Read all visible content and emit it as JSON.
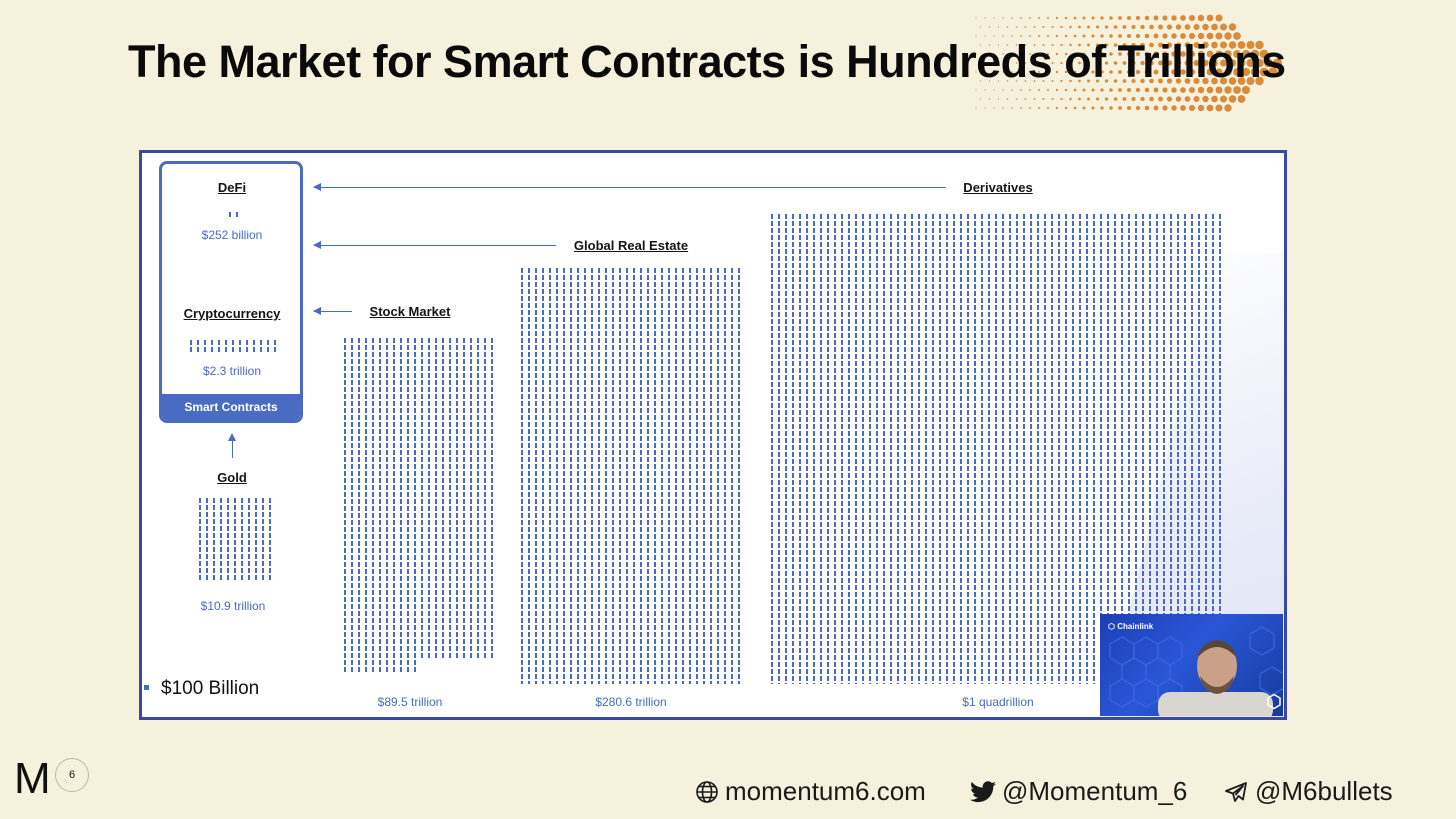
{
  "slide": {
    "title": "The Market for Smart Contracts is Hundreds of Trillions",
    "page_number": "6",
    "logo_text": "M"
  },
  "chart": {
    "smart_contracts_label": "Smart Contracts",
    "defi": {
      "label": "DeFi",
      "value": "$252 billion"
    },
    "crypto": {
      "label": "Cryptocurrency",
      "value": "$2.3 trillion"
    },
    "gold": {
      "label": "Gold",
      "value": "$10.9 trillion"
    },
    "stock": {
      "label": "Stock Market",
      "value": "$89.5 trillion"
    },
    "real_estate": {
      "label": "Global Real Estate",
      "value": "$280.6 trillion"
    },
    "derivatives": {
      "label": "Derivatives",
      "value": "$1 quadrillion"
    },
    "scale": "$100 Billion"
  },
  "chart_data": {
    "type": "other",
    "unit_per_square": "$100 Billion",
    "categories": [
      "DeFi",
      "Cryptocurrency",
      "Gold",
      "Stock Market",
      "Global Real Estate",
      "Derivatives"
    ],
    "value_labels": [
      "$252 billion",
      "$2.3 trillion",
      "$10.9 trillion",
      "$89.5 trillion",
      "$280.6 trillion",
      "$1 quadrillion"
    ],
    "values_usd_billion": [
      252,
      2300,
      10900,
      89500,
      280600,
      1000000
    ]
  },
  "video": {
    "brand": "Chainlink"
  },
  "footer": {
    "website": "momentum6.com",
    "twitter": "@Momentum_6",
    "telegram": "@M6bullets"
  },
  "colors": {
    "background": "#f6f1dc",
    "accent_blue": "#4a6bc4",
    "frame_blue": "#3a4a9e",
    "decor_orange": "#d98a3a"
  }
}
